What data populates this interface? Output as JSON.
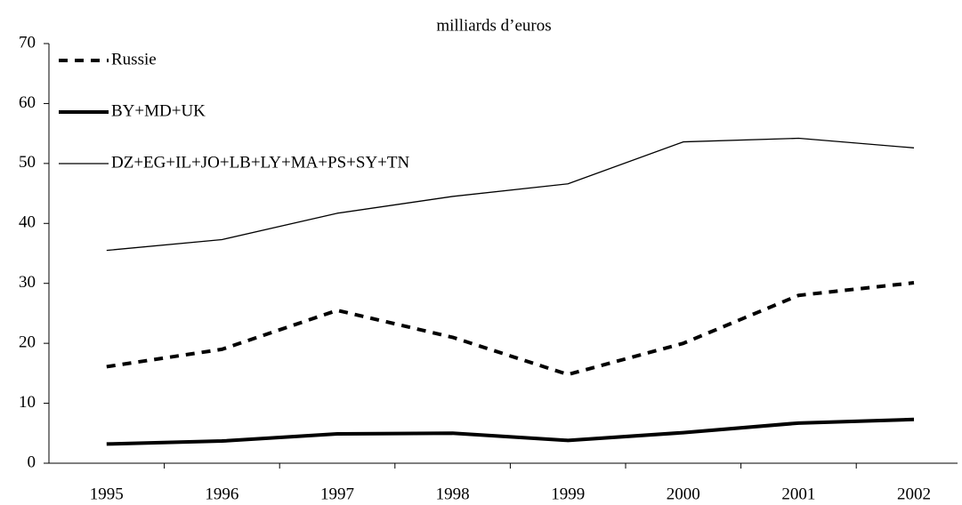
{
  "chart_data": {
    "type": "line",
    "subtitle": "milliards d’euros",
    "categories": [
      "1995",
      "1996",
      "1997",
      "1998",
      "1999",
      "2000",
      "2001",
      "2002"
    ],
    "series": [
      {
        "name": "Russie",
        "color": "#000000",
        "line_width": 4,
        "dashed": true,
        "values": [
          16.1,
          19,
          25.5,
          21,
          14.8,
          20,
          28,
          30.1
        ]
      },
      {
        "name": "BY+MD+UK",
        "color": "#000000",
        "line_width": 4,
        "dashed": false,
        "values": [
          3.2,
          3.7,
          4.9,
          5,
          3.8,
          5.1,
          6.7,
          7.3
        ]
      },
      {
        "name": "DZ+EG+IL+JO+LB+LY+MA+PS+SY+TN",
        "color": "#000000",
        "line_width": 1.3,
        "dashed": false,
        "values": [
          35.5,
          37.3,
          41.7,
          44.5,
          46.6,
          53.6,
          54.2,
          52.6
        ]
      }
    ],
    "ylim": [
      0,
      70
    ],
    "yticks": [
      0,
      10,
      20,
      30,
      40,
      50,
      60,
      70
    ],
    "grid": false,
    "legend": "top-left"
  }
}
